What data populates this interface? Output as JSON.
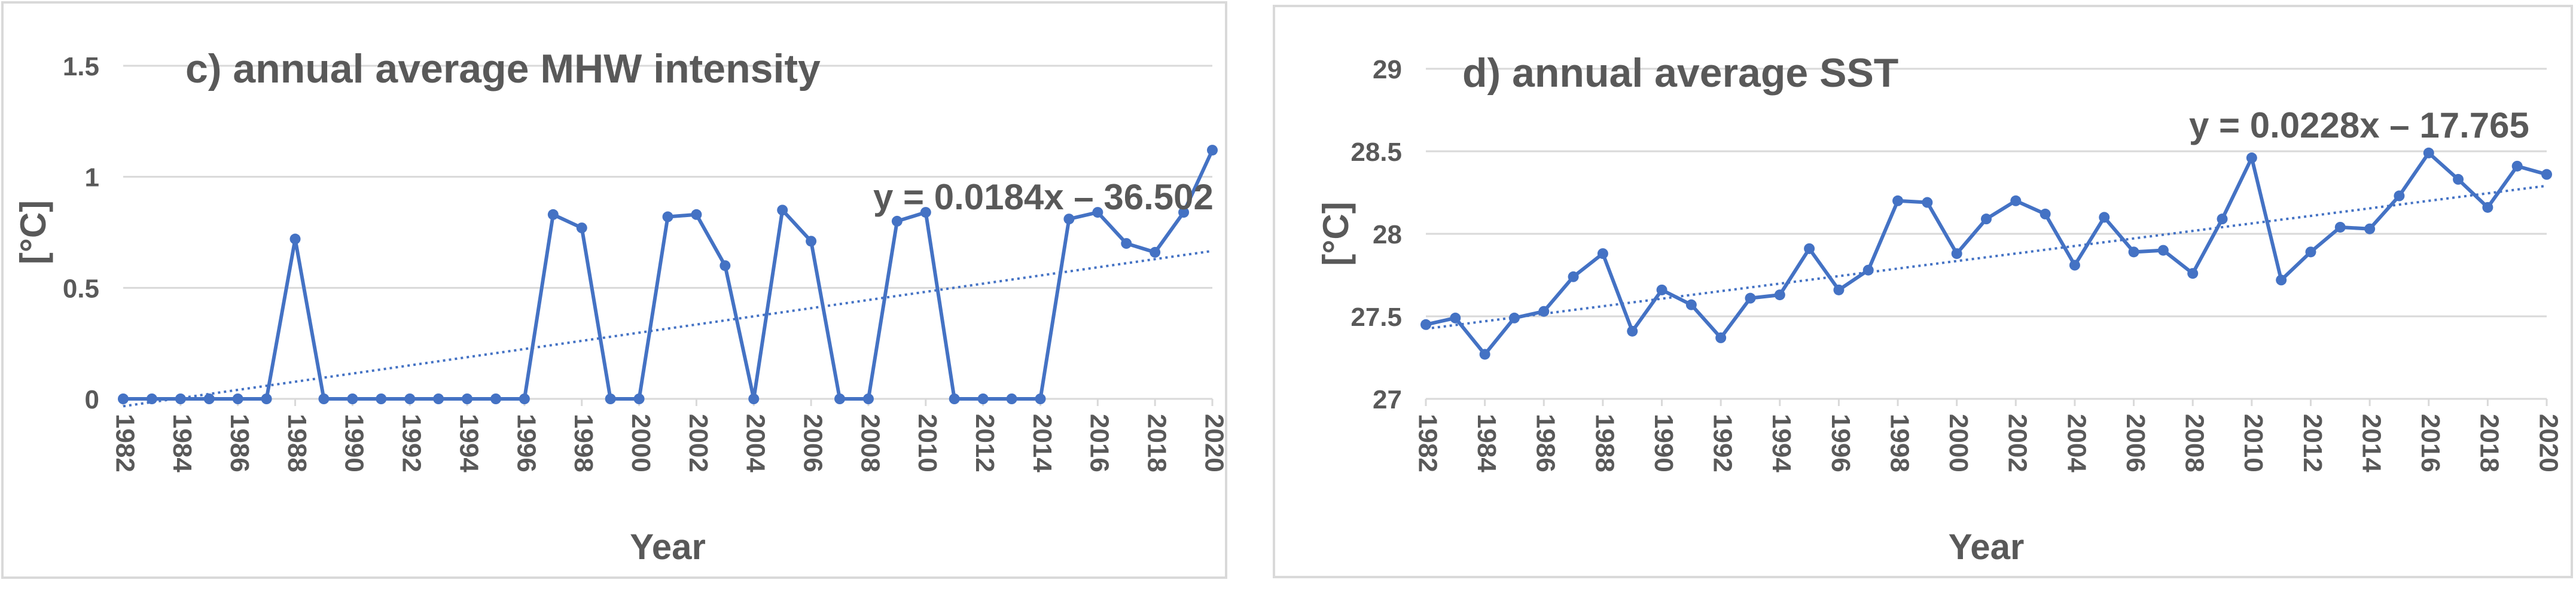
{
  "chart_data": [
    {
      "type": "line",
      "title": "c) annual average MHW  intensity",
      "xlabel": "Year",
      "ylabel": "[°C]",
      "x": [
        1982,
        1983,
        1984,
        1985,
        1986,
        1987,
        1988,
        1989,
        1990,
        1991,
        1992,
        1993,
        1994,
        1995,
        1996,
        1997,
        1998,
        1999,
        2000,
        2001,
        2002,
        2003,
        2004,
        2005,
        2006,
        2007,
        2008,
        2009,
        2010,
        2011,
        2012,
        2013,
        2014,
        2015,
        2016,
        2017,
        2018,
        2019,
        2020
      ],
      "values": [
        0,
        0,
        0,
        0,
        0,
        0,
        0.72,
        0,
        0,
        0,
        0,
        0,
        0,
        0,
        0,
        0.83,
        0.77,
        0,
        0,
        0.82,
        0.83,
        0.6,
        0,
        0.85,
        0.71,
        0,
        0,
        0.8,
        0.84,
        0,
        0,
        0,
        0,
        0.81,
        0.84,
        0.7,
        0.66,
        0.84,
        1.12
      ],
      "color": "#4472c4",
      "xlim": [
        1982,
        2020
      ],
      "xticks": [
        1982,
        1984,
        1986,
        1988,
        1990,
        1992,
        1994,
        1996,
        1998,
        2000,
        2002,
        2004,
        2006,
        2008,
        2010,
        2012,
        2014,
        2016,
        2018,
        2020
      ],
      "ylim": [
        0,
        1.5
      ],
      "yticks": [
        0,
        0.5,
        1,
        1.5
      ],
      "grid": true,
      "annotation": "y = 0.0184x – 36.502",
      "trend": {
        "slope": 0.0184,
        "intercept": -36.502
      }
    },
    {
      "type": "line",
      "title": "d) annual average SST",
      "xlabel": "Year",
      "ylabel": "[°C]",
      "x": [
        1982,
        1983,
        1984,
        1985,
        1986,
        1987,
        1988,
        1989,
        1990,
        1991,
        1992,
        1993,
        1994,
        1995,
        1996,
        1997,
        1998,
        1999,
        2000,
        2001,
        2002,
        2003,
        2004,
        2005,
        2006,
        2007,
        2008,
        2009,
        2010,
        2011,
        2012,
        2013,
        2014,
        2015,
        2016,
        2017,
        2018,
        2019,
        2020
      ],
      "values": [
        27.45,
        27.49,
        27.27,
        27.49,
        27.53,
        27.74,
        27.88,
        27.41,
        27.66,
        27.57,
        27.37,
        27.61,
        27.63,
        27.91,
        27.66,
        27.78,
        28.2,
        28.19,
        27.88,
        28.09,
        28.2,
        28.12,
        27.81,
        28.1,
        27.89,
        27.9,
        27.76,
        28.09,
        28.46,
        27.72,
        27.89,
        28.04,
        28.03,
        28.23,
        28.49,
        28.33,
        28.16,
        28.41,
        28.36
      ],
      "color": "#4472c4",
      "xlim": [
        1982,
        2020
      ],
      "xticks": [
        1982,
        1984,
        1986,
        1988,
        1990,
        1992,
        1994,
        1996,
        1998,
        2000,
        2002,
        2004,
        2006,
        2008,
        2010,
        2012,
        2014,
        2016,
        2018,
        2020
      ],
      "ylim": [
        27,
        29
      ],
      "yticks": [
        27,
        27.5,
        28,
        28.5,
        29
      ],
      "grid": true,
      "annotation": "y = 0.0228x – 17.765",
      "trend": {
        "slope": 0.0228,
        "intercept": -17.765
      }
    }
  ]
}
